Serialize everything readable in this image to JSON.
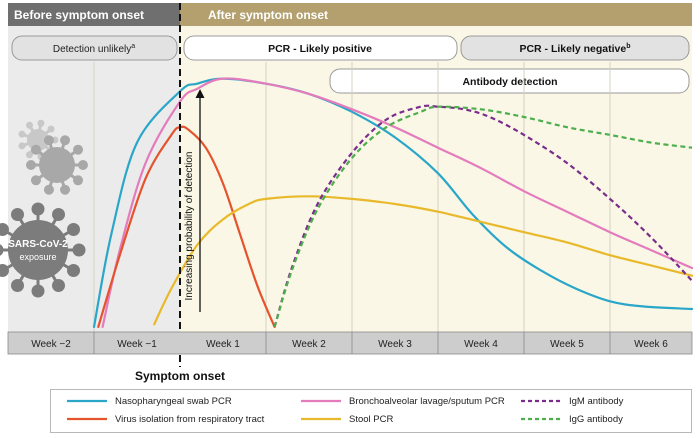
{
  "header": {
    "before": "Before symptom onset",
    "after": "After symptom onset"
  },
  "bands": {
    "detection_unlikely": "Detection unlikely",
    "detection_unlikely_sup": "a",
    "pcr_positive": "PCR - Likely positive",
    "pcr_negative": "PCR - Likely negative",
    "pcr_negative_sup": "b",
    "antibody": "Antibody detection"
  },
  "labels": {
    "exposure_line1": "SARS-CoV-2",
    "exposure_line2": "exposure",
    "symptom_onset": "Symptom onset",
    "ylabel": "Increasing probability of detection"
  },
  "colors": {
    "header_before": "#6f6f6f",
    "header_after": "#b3a06e",
    "bg_before": "#ebebeb",
    "bg_after": "#faf7e6",
    "axis_strip": "#cdcdcd",
    "virus_light": "#c8c8c8",
    "virus_mid": "#a8a8a8",
    "virus_dark": "#7c7c7c"
  },
  "chart_data": {
    "type": "line",
    "x_unit": "weeks relative to symptom onset",
    "xlim": [
      -2,
      6
    ],
    "ylim": [
      0,
      100
    ],
    "categories": [
      "Week −2",
      "Week −1",
      "Week 1",
      "Week 2",
      "Week 3",
      "Week 4",
      "Week 5",
      "Week 6"
    ],
    "grid": true,
    "legend_position": "bottom",
    "series": [
      {
        "name": "Nasopharyngeal swab PCR",
        "color": "#2aa6c8",
        "dash": "solid",
        "x": [
          -1.0,
          -0.8,
          -0.5,
          0.0,
          0.2,
          0.5,
          1.0,
          1.5,
          2.0,
          2.5,
          3.0,
          3.4,
          3.8,
          4.2,
          4.6,
          5.0,
          5.4,
          6.0
        ],
        "y": [
          2,
          38,
          74,
          94,
          97,
          99,
          97,
          93,
          86,
          76,
          62,
          46,
          33,
          24,
          17,
          12,
          10,
          9
        ]
      },
      {
        "name": "Bronchoalveolar lavage/sputum PCR",
        "color": "#e37bbd",
        "dash": "solid",
        "x": [
          -0.9,
          -0.7,
          -0.4,
          0.0,
          0.2,
          0.5,
          1.0,
          1.5,
          2.0,
          2.5,
          3.0,
          3.5,
          4.0,
          4.5,
          5.0,
          5.5,
          6.0
        ],
        "y": [
          2,
          32,
          66,
          90,
          95,
          99,
          97,
          93,
          87,
          80,
          72,
          64,
          55,
          47,
          39,
          32,
          25
        ]
      },
      {
        "name": "Virus isolation from respiratory tract",
        "color": "#e5532c",
        "dash": "solid",
        "x": [
          -0.95,
          -0.7,
          -0.4,
          -0.1,
          0.0,
          0.1,
          0.3,
          0.5,
          0.7,
          0.9,
          1.1
        ],
        "y": [
          2,
          30,
          60,
          77,
          80,
          79,
          72,
          58,
          38,
          18,
          2
        ]
      },
      {
        "name": "Stool PCR",
        "color": "#e8b92a",
        "dash": "solid",
        "x": [
          -0.3,
          -0.1,
          0.2,
          0.5,
          0.8,
          1.0,
          1.5,
          2.0,
          2.5,
          3.0,
          3.5,
          4.0,
          4.5,
          5.0,
          5.5,
          6.0
        ],
        "y": [
          3,
          17,
          34,
          44,
          50,
          52,
          53,
          52,
          50,
          47,
          43,
          39,
          35,
          30,
          26,
          22
        ]
      },
      {
        "name": "IgM antibody",
        "color": "#7a2d8c",
        "dash": "dashed",
        "x": [
          1.1,
          1.3,
          1.6,
          2.0,
          2.4,
          2.8,
          3.0,
          3.3,
          3.6,
          4.0,
          4.5,
          5.0,
          5.5,
          6.0
        ],
        "y": [
          2,
          25,
          50,
          70,
          83,
          88,
          88,
          87,
          84,
          77,
          66,
          52,
          37,
          20
        ]
      },
      {
        "name": "IgG antibody",
        "color": "#4cae4c",
        "dash": "dashed",
        "x": [
          1.1,
          1.3,
          1.6,
          2.0,
          2.4,
          2.8,
          3.0,
          3.5,
          4.0,
          4.5,
          5.0,
          5.5,
          6.0
        ],
        "y": [
          2,
          24,
          48,
          68,
          80,
          86,
          88,
          87,
          84,
          80,
          77,
          74,
          72
        ]
      }
    ]
  }
}
